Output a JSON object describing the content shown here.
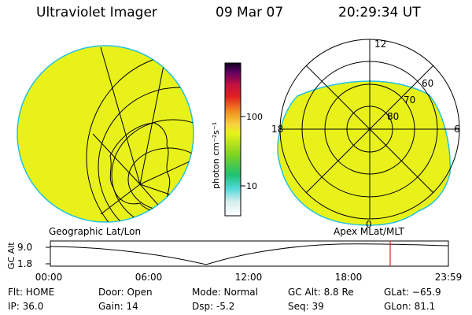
{
  "header": {
    "instrument": "Ultraviolet Imager",
    "date": "09 Mar 07",
    "time": "20:29:34 UT"
  },
  "colors": {
    "fill": "#e8f21a",
    "edge": "#22c2e0",
    "marker": "#e21b1b"
  },
  "polar": {
    "mlt_labels": [
      "12",
      "18",
      "6",
      "0"
    ],
    "lat_labels": [
      "60",
      "70",
      "80"
    ]
  },
  "colorbar": {
    "unit": "photon cm⁻²s⁻¹",
    "ticks": [
      "100",
      "10"
    ],
    "scale": "log",
    "stops": [
      "#ffffff",
      "#d8eeee",
      "#50d8d8",
      "#20c070",
      "#7ed321",
      "#e8f21a",
      "#f8d040",
      "#f09020",
      "#e02020",
      "#c01040",
      "#600060",
      "#100020"
    ]
  },
  "labels": {
    "geo": "Geographic Lat/Lon",
    "apex": "Apex  MLat/MLT"
  },
  "timeline": {
    "axis_label": "GC Alt",
    "y_ticks": [
      "9.0",
      "1.8"
    ],
    "x_ticks": [
      "00:00",
      "06:00",
      "12:00",
      "18:00",
      "23:59"
    ],
    "current_time_hours": 20.49
  },
  "footer": {
    "flt": "Flt: HOME",
    "ip": "IP: 36.0",
    "door": "Door: Open",
    "gain": "Gain: 14",
    "mode": "Mode: Normal",
    "dsp": "Dsp:    -5.2",
    "gcalt": "GC Alt: 8.8 Re",
    "seq": "Seq: 39",
    "glat": "GLat: −65.9",
    "glon": "GLon:  81.1"
  }
}
